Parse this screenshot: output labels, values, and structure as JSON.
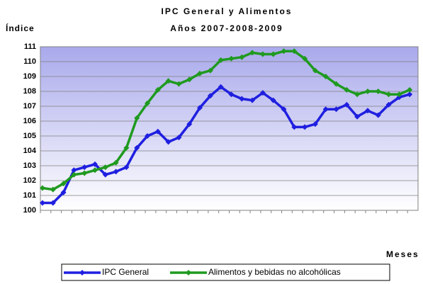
{
  "chart_data": {
    "type": "line",
    "title": "IPC General y Alimentos",
    "subtitle": "Años 2007-2008-2009",
    "y_label": "Índice",
    "x_label": "Meses",
    "categories": [
      null,
      null,
      null,
      null,
      null,
      null,
      null,
      null,
      null,
      null,
      null,
      null,
      null,
      null,
      null,
      null,
      null,
      null,
      null,
      null,
      null,
      null,
      null,
      null,
      null,
      null,
      null,
      null,
      null,
      null,
      null,
      null,
      null,
      null,
      null,
      null
    ],
    "series": [
      {
        "name": "IPC General",
        "color": "#1f1fe0",
        "values": [
          100.5,
          100.5,
          101.2,
          102.7,
          102.9,
          103.1,
          102.4,
          102.6,
          102.9,
          104.2,
          105.0,
          105.3,
          104.6,
          104.9,
          105.8,
          106.9,
          107.7,
          108.3,
          107.8,
          107.5,
          107.4,
          107.9,
          107.4,
          106.8,
          105.6,
          105.6,
          105.8,
          106.8,
          106.8,
          107.1,
          106.3,
          106.7,
          106.4,
          107.1,
          107.6,
          107.8
        ]
      },
      {
        "name": "Alimentos y bebidas no alcohólicas",
        "color": "#1f9a1f",
        "values": [
          101.5,
          101.4,
          101.8,
          102.4,
          102.5,
          102.7,
          102.9,
          103.2,
          104.2,
          106.2,
          107.2,
          108.1,
          108.7,
          108.5,
          108.8,
          109.2,
          109.4,
          110.1,
          110.2,
          110.3,
          110.6,
          110.5,
          110.5,
          110.7,
          110.7,
          110.2,
          109.4,
          109.0,
          108.5,
          108.1,
          107.8,
          108.0,
          108.0,
          107.8,
          107.8,
          108.1
        ]
      }
    ],
    "ylim": [
      100,
      111
    ],
    "yticks": [
      100,
      101,
      102,
      103,
      104,
      105,
      106,
      107,
      108,
      109,
      110,
      111
    ],
    "grid": true,
    "legend": "bottom"
  }
}
